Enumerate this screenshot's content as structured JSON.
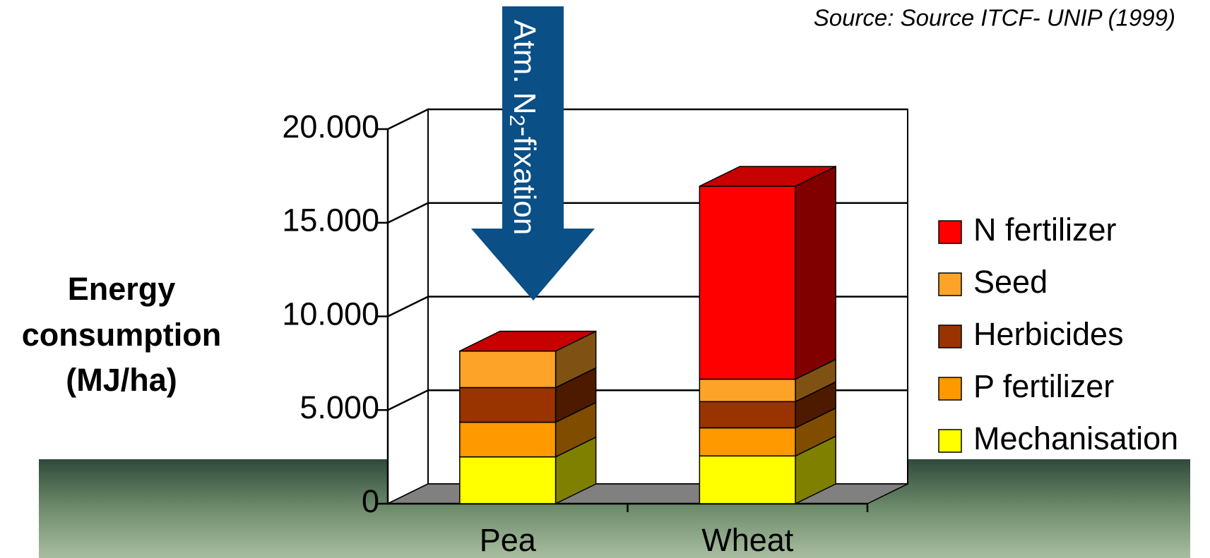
{
  "chart_data": {
    "type": "bar3d-stacked",
    "source": "Source: Source ITCF- UNIP (1999)",
    "annotation": [
      "Atm. N",
      "2",
      "-fixation"
    ],
    "y_label": [
      "Energy",
      "consumption",
      "(MJ/ha)"
    ],
    "categories": [
      "Pea",
      "Wheat"
    ],
    "series": [
      {
        "name": "Mechanisation",
        "color": "#ffff00",
        "values": [
          2500,
          2550
        ]
      },
      {
        "name": "P fertilizer",
        "color": "#ff9900",
        "values": [
          1850,
          1500
        ]
      },
      {
        "name": "Herbicides",
        "color": "#993300",
        "values": [
          1850,
          1400
        ]
      },
      {
        "name": "Seed",
        "color": "#fda428",
        "values": [
          1950,
          1200
        ]
      },
      {
        "name": "N fertilizer",
        "color": "#ff0000",
        "values": [
          0,
          10300
        ]
      }
    ],
    "ylim": [
      0,
      20000
    ],
    "yticks": [
      0,
      {
        "value": 5000,
        "label": "5.000"
      },
      {
        "value": 10000,
        "label": "10.000"
      },
      {
        "value": 15000,
        "label": "15.000"
      },
      {
        "value": 20000,
        "label": "20.000"
      }
    ],
    "grid": true,
    "legend": "right"
  }
}
